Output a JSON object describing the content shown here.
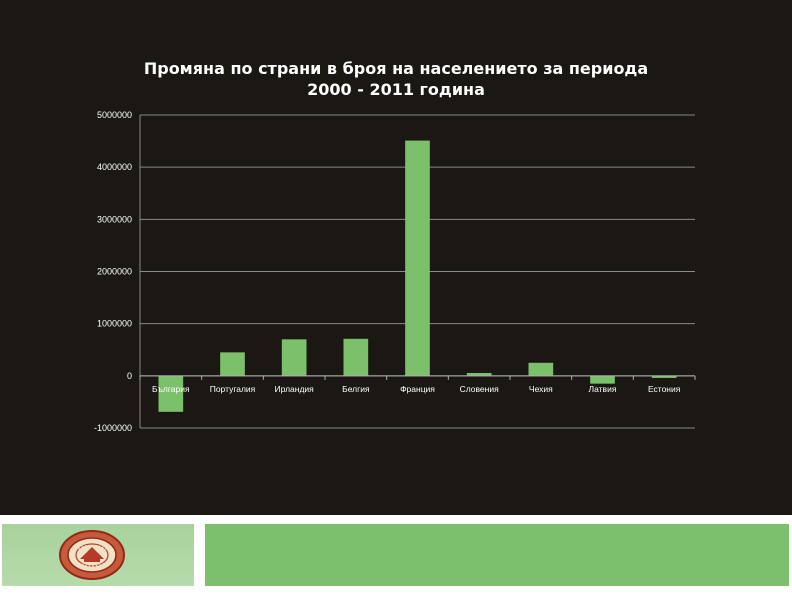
{
  "chart_data": {
    "type": "bar",
    "title": "Промяна по страни в броя на населението за периода 2000 - 2011 година",
    "title_lines": [
      "Промяна по страни в броя на населението за периода",
      "2000 - 2011 година"
    ],
    "categories": [
      "България",
      "Португалия",
      "Ирландия",
      "Белгия",
      "Франция",
      "Словения",
      "Чехия",
      "Латвия",
      "Естония"
    ],
    "values": [
      -690000,
      450000,
      700000,
      710000,
      4510000,
      55000,
      250000,
      -150000,
      -40000
    ],
    "yticks": [
      -1000000,
      0,
      1000000,
      2000000,
      3000000,
      4000000,
      5000000
    ],
    "ytick_labels": [
      "-1000000",
      "0",
      "1000000",
      "2000000",
      "3000000",
      "4000000",
      "5000000"
    ],
    "ylim": [
      -1000000,
      5000000
    ],
    "xlabel": "",
    "ylabel": "",
    "grid": true,
    "legend": "none",
    "colors": {
      "bar": "#7dc06c",
      "grid": "#8a8a8a",
      "text": "#ffffff",
      "background": "#1b1712"
    }
  },
  "footer": {
    "logo": "university-seal-icon",
    "colors": {
      "left_panel": "#b0d7a4",
      "right_panel": "#7cbf6c",
      "seal": "#b53a2a"
    }
  }
}
